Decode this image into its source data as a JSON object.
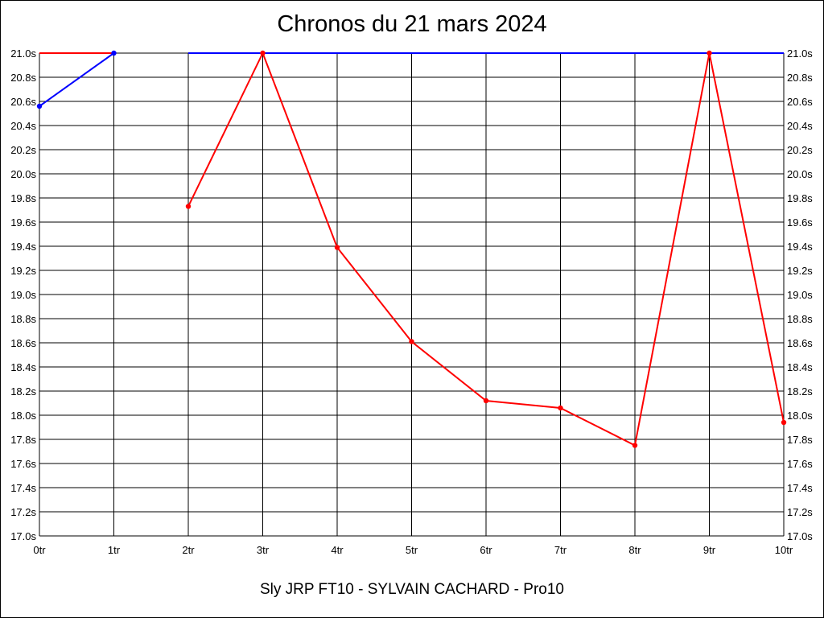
{
  "chart_data": {
    "type": "line",
    "title": "Chronos du 21 mars 2024",
    "subtitle": "Sly JRP FT10 - SYLVAIN CACHARD - Pro10",
    "x_tick_labels": [
      "0tr",
      "1tr",
      "2tr",
      "3tr",
      "4tr",
      "5tr",
      "6tr",
      "7tr",
      "8tr",
      "9tr",
      "10tr"
    ],
    "y_tick_labels": [
      "21.0s",
      "20.8s",
      "20.6s",
      "20.4s",
      "20.2s",
      "20.0s",
      "19.8s",
      "19.6s",
      "19.4s",
      "19.2s",
      "19.0s",
      "18.8s",
      "18.6s",
      "18.4s",
      "18.2s",
      "18.0s",
      "17.8s",
      "17.6s",
      "17.4s",
      "17.2s",
      "17.0s"
    ],
    "xlim": [
      0,
      10
    ],
    "ylim": [
      17.0,
      21.0
    ],
    "grid": true,
    "series": [
      {
        "color": "#0000ff",
        "segments": [
          {
            "x": [
              0,
              1
            ],
            "y": [
              20.56,
              21.0
            ]
          },
          {
            "x": [
              2,
              10
            ],
            "y": [
              21.0,
              21.0
            ]
          }
        ],
        "markers": [
          {
            "x": 0,
            "y": 20.56
          },
          {
            "x": 1,
            "y": 21.0
          }
        ]
      },
      {
        "color": "#ff0000",
        "segments": [
          {
            "x": [
              0,
              1
            ],
            "y": [
              21.0,
              21.0
            ]
          },
          {
            "x": [
              2,
              3,
              4,
              5,
              6,
              7,
              8,
              9,
              10
            ],
            "y": [
              19.73,
              21.0,
              19.39,
              18.61,
              18.12,
              18.06,
              17.75,
              21.0,
              17.94
            ]
          }
        ],
        "markers": [
          {
            "x": 2,
            "y": 19.73
          },
          {
            "x": 3,
            "y": 21.0
          },
          {
            "x": 4,
            "y": 19.39
          },
          {
            "x": 5,
            "y": 18.61
          },
          {
            "x": 6,
            "y": 18.12
          },
          {
            "x": 7,
            "y": 18.06
          },
          {
            "x": 8,
            "y": 17.75
          },
          {
            "x": 9,
            "y": 21.0
          },
          {
            "x": 10,
            "y": 17.94
          }
        ]
      }
    ]
  }
}
